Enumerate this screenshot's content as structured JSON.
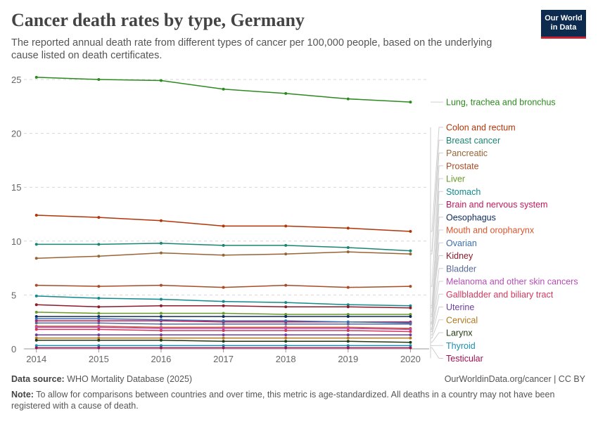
{
  "header": {
    "title": "Cancer death rates by type, Germany",
    "subtitle": "The reported annual death rate from different types of cancer per 100,000 people, based on the underlying cause listed on death certificates."
  },
  "logo": {
    "line1": "Our World",
    "line2": "in Data"
  },
  "footer": {
    "source_label": "Data source:",
    "source_text": "WHO Mortality Database (2025)",
    "url": "OurWorldinData.org/cancer | CC BY",
    "note_label": "Note:",
    "note_text": "To allow for comparisons between countries and over time, this metric is age-standardized. All deaths in a country may not have been registered with a cause of death."
  },
  "chart_data": {
    "type": "line",
    "x": [
      2014,
      2015,
      2016,
      2017,
      2018,
      2019,
      2020
    ],
    "x_range": [
      2013.8,
      2020.3
    ],
    "ylim": [
      0,
      25
    ],
    "yticks": [
      0,
      5,
      10,
      15,
      20,
      25
    ],
    "grid": true,
    "legend_placement": "right",
    "series": [
      {
        "name": "Lung, trachea and bronchus",
        "color": "#2b8a1d",
        "values": [
          25.2,
          25.0,
          24.9,
          24.1,
          23.7,
          23.2,
          22.9
        ]
      },
      {
        "name": "Colon and rectum",
        "color": "#b13507",
        "values": [
          12.4,
          12.2,
          11.9,
          11.4,
          11.4,
          11.2,
          10.9
        ]
      },
      {
        "name": "Breast cancer",
        "color": "#1a8572",
        "values": [
          9.7,
          9.7,
          9.8,
          9.6,
          9.6,
          9.4,
          9.1
        ]
      },
      {
        "name": "Pancreatic",
        "color": "#986434",
        "values": [
          8.4,
          8.6,
          8.9,
          8.7,
          8.8,
          9.0,
          8.8
        ]
      },
      {
        "name": "Prostate",
        "color": "#a84b26",
        "values": [
          5.9,
          5.8,
          5.9,
          5.7,
          5.9,
          5.7,
          5.8
        ]
      },
      {
        "name": "Liver",
        "color": "#6a9a28",
        "values": [
          3.4,
          3.3,
          3.3,
          3.3,
          3.2,
          3.2,
          3.2
        ]
      },
      {
        "name": "Stomach",
        "color": "#128a8a",
        "values": [
          4.9,
          4.7,
          4.6,
          4.4,
          4.3,
          4.1,
          4.0
        ]
      },
      {
        "name": "Brain and nervous system",
        "color": "#c2185b",
        "values": [
          2.6,
          2.6,
          2.6,
          2.5,
          2.5,
          2.5,
          2.5
        ]
      },
      {
        "name": "Oesophagus",
        "color": "#0d2a5e",
        "values": [
          3.0,
          3.0,
          3.0,
          3.0,
          3.0,
          3.0,
          3.0
        ]
      },
      {
        "name": "Mouth and oropharynx",
        "color": "#d9542c",
        "values": [
          2.1,
          2.1,
          2.0,
          2.0,
          2.0,
          2.0,
          1.9
        ]
      },
      {
        "name": "Ovarian",
        "color": "#3a6fb0",
        "values": [
          2.8,
          2.8,
          2.7,
          2.6,
          2.6,
          2.5,
          2.4
        ]
      },
      {
        "name": "Kidney",
        "color": "#8b1a2b",
        "values": [
          4.1,
          3.9,
          4.0,
          4.0,
          3.9,
          3.9,
          3.8
        ]
      },
      {
        "name": "Bladder",
        "color": "#5a6a9a",
        "values": [
          2.4,
          2.4,
          2.3,
          2.3,
          2.3,
          2.3,
          2.3
        ]
      },
      {
        "name": "Melanoma and other skin cancers",
        "color": "#b44fb4",
        "values": [
          2.0,
          2.0,
          1.9,
          1.9,
          1.9,
          1.9,
          1.8
        ]
      },
      {
        "name": "Gallbladder and biliary tract",
        "color": "#d2385e",
        "values": [
          1.8,
          1.8,
          1.7,
          1.7,
          1.7,
          1.7,
          1.6
        ]
      },
      {
        "name": "Uterine",
        "color": "#6b3fa0",
        "values": [
          1.3,
          1.3,
          1.3,
          1.3,
          1.3,
          1.3,
          1.3
        ]
      },
      {
        "name": "Cervical",
        "color": "#b3771e",
        "values": [
          1.0,
          1.0,
          1.0,
          1.0,
          1.0,
          1.0,
          1.0
        ]
      },
      {
        "name": "Larynx",
        "color": "#1f3a10",
        "values": [
          0.8,
          0.8,
          0.8,
          0.7,
          0.7,
          0.7,
          0.6
        ]
      },
      {
        "name": "Thyroid",
        "color": "#1b8fb0",
        "values": [
          0.3,
          0.3,
          0.3,
          0.3,
          0.3,
          0.3,
          0.3
        ]
      },
      {
        "name": "Testicular",
        "color": "#a01050",
        "values": [
          0.1,
          0.1,
          0.1,
          0.1,
          0.1,
          0.1,
          0.1
        ]
      }
    ]
  }
}
